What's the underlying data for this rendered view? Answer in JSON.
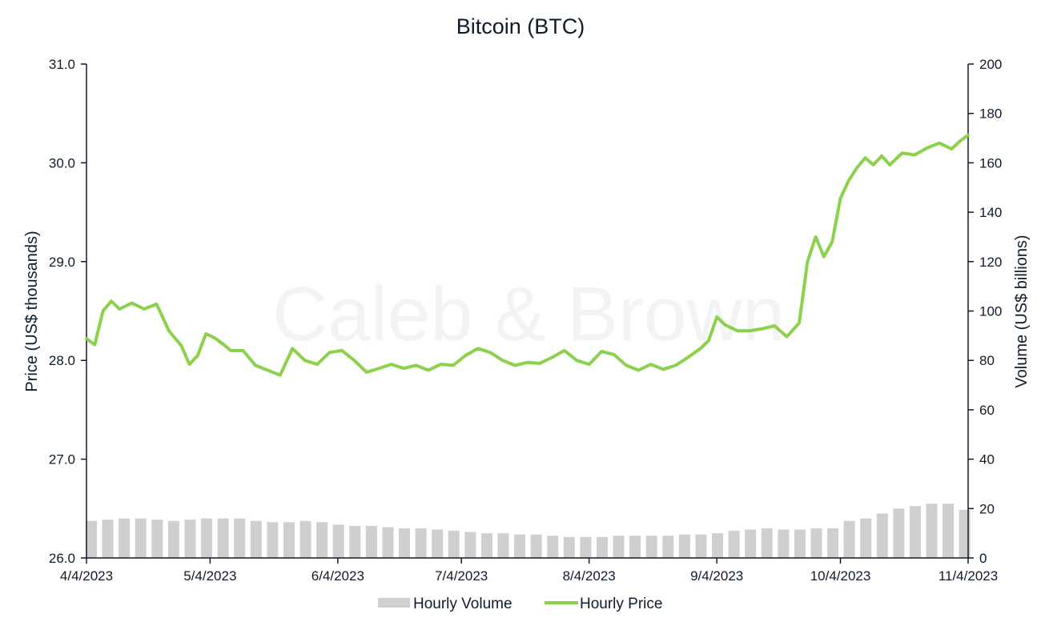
{
  "chart_data": {
    "type": "line",
    "title": "Bitcoin (BTC)",
    "watermark": "Caleb & Brown",
    "y_left_label": "Price (US$ thousands)",
    "y_right_label": "Volume (US$ billions)",
    "y_left_range": [
      26.0,
      31.0
    ],
    "y_left_ticks": [
      "26.0",
      "27.0",
      "28.0",
      "29.0",
      "30.0",
      "31.0"
    ],
    "y_left_tick_values": [
      26,
      27,
      28,
      29,
      30,
      31
    ],
    "y_right_range": [
      0,
      200
    ],
    "y_right_ticks": [
      "0",
      "20",
      "40",
      "60",
      "80",
      "100",
      "120",
      "140",
      "160",
      "180",
      "200"
    ],
    "y_right_tick_values": [
      0,
      20,
      40,
      60,
      80,
      100,
      120,
      140,
      160,
      180,
      200
    ],
    "x_range": [
      "2023-04-04",
      "2023-11-04"
    ],
    "x_ticks": [
      "4/4/2023",
      "5/4/2023",
      "6/4/2023",
      "7/4/2023",
      "8/4/2023",
      "9/4/2023",
      "10/4/2023",
      "11/4/2023"
    ],
    "x_tick_dates": [
      "2023-04-04",
      "2023-05-04",
      "2023-06-04",
      "2023-07-04",
      "2023-08-04",
      "2023-09-04",
      "2023-10-04",
      "2023-11-04"
    ],
    "grid": false,
    "legend_placement": "bottom",
    "colors": {
      "price": "#8cd14c",
      "volume": "#cfcfcf",
      "axis": "#0e1b2b"
    },
    "series": [
      {
        "name": "Hourly Volume",
        "type": "bar",
        "axis": "right",
        "x": [
          "2023-04-04",
          "2023-04-08",
          "2023-04-12",
          "2023-04-16",
          "2023-04-20",
          "2023-04-24",
          "2023-04-28",
          "2023-05-02",
          "2023-05-06",
          "2023-05-10",
          "2023-05-14",
          "2023-05-18",
          "2023-05-22",
          "2023-05-26",
          "2023-05-30",
          "2023-06-03",
          "2023-06-07",
          "2023-06-11",
          "2023-06-15",
          "2023-06-19",
          "2023-06-23",
          "2023-06-27",
          "2023-07-01",
          "2023-07-05",
          "2023-07-09",
          "2023-07-13",
          "2023-07-17",
          "2023-07-21",
          "2023-07-25",
          "2023-07-29",
          "2023-08-02",
          "2023-08-06",
          "2023-08-10",
          "2023-08-14",
          "2023-08-18",
          "2023-08-22",
          "2023-08-26",
          "2023-08-30",
          "2023-09-03",
          "2023-09-07",
          "2023-09-11",
          "2023-09-15",
          "2023-09-19",
          "2023-09-23",
          "2023-09-27",
          "2023-10-01",
          "2023-10-05",
          "2023-10-09",
          "2023-10-13",
          "2023-10-17",
          "2023-10-21",
          "2023-10-25",
          "2023-10-29",
          "2023-11-02"
        ],
        "values": [
          15,
          15.5,
          16,
          16,
          15.5,
          15,
          15.5,
          16,
          16,
          16,
          15,
          14.5,
          14.5,
          15,
          14.5,
          13.5,
          13,
          13,
          12.5,
          12,
          12,
          11.5,
          11,
          10.5,
          10,
          10,
          9.5,
          9.5,
          9,
          8.5,
          8.5,
          8.5,
          9,
          9,
          9,
          9,
          9.5,
          9.5,
          10,
          11,
          11.5,
          12,
          11.5,
          11.5,
          12,
          12,
          15,
          16,
          18,
          20,
          21,
          22,
          22,
          19.5
        ]
      },
      {
        "name": "Hourly Price",
        "type": "line",
        "axis": "left",
        "x": [
          "2023-04-04",
          "2023-04-06",
          "2023-04-08",
          "2023-04-10",
          "2023-04-12",
          "2023-04-15",
          "2023-04-18",
          "2023-04-21",
          "2023-04-24",
          "2023-04-27",
          "2023-04-29",
          "2023-05-01",
          "2023-05-03",
          "2023-05-05",
          "2023-05-07",
          "2023-05-09",
          "2023-05-12",
          "2023-05-15",
          "2023-05-18",
          "2023-05-21",
          "2023-05-24",
          "2023-05-27",
          "2023-05-30",
          "2023-06-02",
          "2023-06-05",
          "2023-06-08",
          "2023-06-11",
          "2023-06-14",
          "2023-06-17",
          "2023-06-20",
          "2023-06-23",
          "2023-06-26",
          "2023-06-29",
          "2023-07-02",
          "2023-07-05",
          "2023-07-08",
          "2023-07-11",
          "2023-07-14",
          "2023-07-17",
          "2023-07-20",
          "2023-07-23",
          "2023-07-26",
          "2023-07-29",
          "2023-08-01",
          "2023-08-04",
          "2023-08-07",
          "2023-08-10",
          "2023-08-13",
          "2023-08-16",
          "2023-08-19",
          "2023-08-22",
          "2023-08-25",
          "2023-08-28",
          "2023-08-31",
          "2023-09-02",
          "2023-09-04",
          "2023-09-06",
          "2023-09-09",
          "2023-09-12",
          "2023-09-15",
          "2023-09-18",
          "2023-09-21",
          "2023-09-24",
          "2023-09-26",
          "2023-09-28",
          "2023-09-30",
          "2023-10-02",
          "2023-10-04",
          "2023-10-06",
          "2023-10-08",
          "2023-10-10",
          "2023-10-12",
          "2023-10-14",
          "2023-10-16",
          "2023-10-19",
          "2023-10-22",
          "2023-10-25",
          "2023-10-28",
          "2023-10-31",
          "2023-11-02",
          "2023-11-04"
        ],
        "values": [
          28.22,
          28.16,
          28.5,
          28.6,
          28.52,
          28.58,
          28.52,
          28.57,
          28.3,
          28.15,
          27.96,
          28.05,
          28.27,
          28.23,
          28.17,
          28.1,
          28.1,
          27.95,
          27.9,
          27.85,
          28.12,
          28.0,
          27.96,
          28.08,
          28.1,
          28.0,
          27.88,
          27.92,
          27.96,
          27.92,
          27.95,
          27.9,
          27.96,
          27.95,
          28.05,
          28.12,
          28.08,
          28.0,
          27.95,
          27.98,
          27.97,
          28.03,
          28.1,
          28.0,
          27.96,
          28.09,
          28.06,
          27.95,
          27.9,
          27.96,
          27.91,
          27.95,
          28.03,
          28.12,
          28.2,
          28.44,
          28.36,
          28.3,
          28.3,
          28.32,
          28.35,
          28.24,
          28.38,
          29.0,
          29.25,
          29.05,
          29.2,
          29.64,
          29.82,
          29.95,
          30.05,
          29.98,
          30.07,
          29.98,
          30.1,
          30.08,
          30.15,
          30.2,
          30.14,
          30.22,
          30.28
        ]
      }
    ]
  }
}
